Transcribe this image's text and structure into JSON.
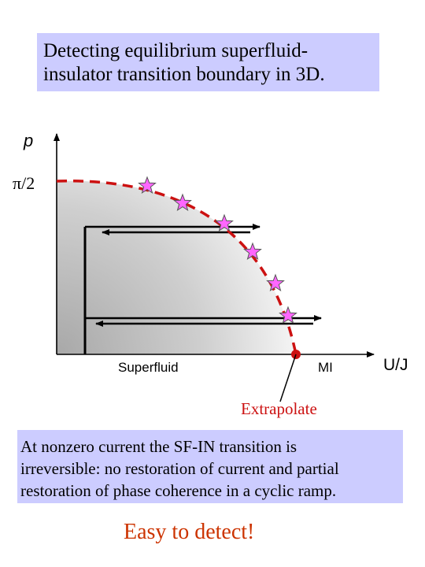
{
  "title": {
    "line1": "Detecting equilibrium superfluid-",
    "line2": "insulator transition boundary in 3D."
  },
  "diagram": {
    "y_axis_label": "p",
    "y_tick_label": "π/2",
    "x_axis_label": "U/J",
    "region_left_label": "Superfluid",
    "region_right_label": "MI",
    "extrapolate_label": "Extrapolate",
    "colors": {
      "boundary": "#cc1111",
      "star_fill": "#ff66ff",
      "star_stroke": "#555555",
      "dot": "#cc1111",
      "extrapolate_text": "#cc1111"
    }
  },
  "info": {
    "line1": "At nonzero current the SF-IN transition is",
    "line2": "irreversible: no restoration of current and partial",
    "line3": "restoration of phase coherence in a cyclic ramp."
  },
  "footer": {
    "text": "Easy to detect!"
  }
}
